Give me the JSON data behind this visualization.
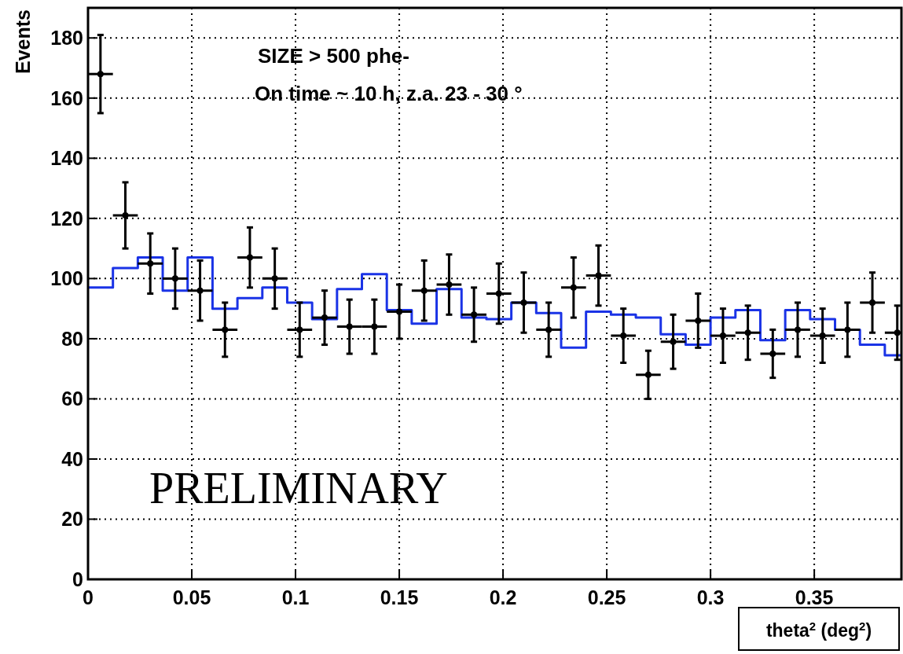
{
  "chart_data": {
    "type": "scatter",
    "xlabel": "theta$^{2}$ (deg$^{2}$)",
    "ylabel": "Events",
    "annotations": [
      "SIZE > 500 phe-",
      "On time ~ 10 h, z.a. 23 - 30 °",
      "PRELIMINARY"
    ],
    "xlim": [
      0,
      0.392
    ],
    "ylim": [
      0,
      190
    ],
    "xticks": [
      0,
      0.05,
      0.1,
      0.15,
      0.2,
      0.25,
      0.3,
      0.35
    ],
    "yticks": [
      0,
      20,
      40,
      60,
      80,
      100,
      120,
      140,
      160,
      180
    ],
    "grid": true,
    "series": [
      {
        "color": "#000000",
        "x": [
          0.006,
          0.018,
          0.03,
          0.042,
          0.054,
          0.066,
          0.078,
          0.09,
          0.102,
          0.114,
          0.126,
          0.138,
          0.15,
          0.162,
          0.174,
          0.186,
          0.198,
          0.21,
          0.222,
          0.234,
          0.246,
          0.258,
          0.27,
          0.282,
          0.294,
          0.306,
          0.318,
          0.33,
          0.342,
          0.354,
          0.366,
          0.378,
          0.39
        ],
        "values": [
          168,
          121,
          105,
          100,
          96,
          83,
          107,
          100,
          83,
          87,
          84,
          84,
          89,
          96,
          98,
          88,
          95,
          92,
          83,
          97,
          101,
          81,
          68,
          79,
          86,
          81,
          82,
          75,
          83,
          81,
          83,
          92,
          82
        ],
        "errors": [
          13,
          11,
          10,
          10,
          10,
          9,
          10,
          10,
          9,
          9,
          9,
          9,
          9,
          10,
          10,
          9,
          10,
          10,
          9,
          10,
          10,
          9,
          8,
          9,
          9,
          9,
          9,
          8,
          9,
          9,
          9,
          10,
          9
        ],
        "xerrors": [
          0.006,
          0.006,
          0.006,
          0.006,
          0.006,
          0.006,
          0.006,
          0.006,
          0.006,
          0.006,
          0.006,
          0.006,
          0.006,
          0.006,
          0.006,
          0.006,
          0.006,
          0.006,
          0.006,
          0.006,
          0.006,
          0.006,
          0.006,
          0.006,
          0.006,
          0.006,
          0.006,
          0.006,
          0.006,
          0.006,
          0.006,
          0.006,
          [
            0.384,
            0.392
          ]
        ]
      },
      {
        "type": "step",
        "color": "#1a33e6",
        "x": [
          0,
          0.012,
          0.024,
          0.036,
          0.048,
          0.06,
          0.072,
          0.084,
          0.096,
          0.108,
          0.12,
          0.132,
          0.144,
          0.156,
          0.168,
          0.18,
          0.192,
          0.204,
          0.216,
          0.228,
          0.24,
          0.252,
          0.264,
          0.276,
          0.288,
          0.3,
          0.312,
          0.324,
          0.336,
          0.348,
          0.36,
          0.372,
          0.384
        ],
        "values": [
          97,
          103.5,
          107,
          96,
          107,
          90,
          93.5,
          97,
          92,
          86.5,
          96.5,
          101.5,
          89.5,
          85,
          96.5,
          87,
          86.5,
          92,
          88.5,
          77,
          89,
          88,
          87,
          81.5,
          78,
          87,
          89.5,
          79.5,
          89.5,
          86.5,
          83,
          78,
          74.5
        ]
      }
    ]
  }
}
